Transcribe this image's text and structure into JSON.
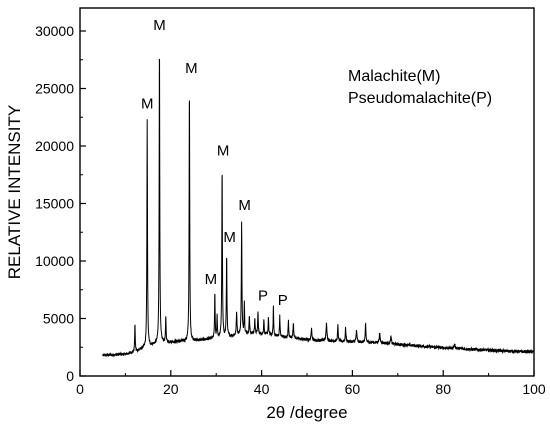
{
  "chart_data": {
    "type": "line",
    "xlabel": "2θ /degree",
    "ylabel": "RELATIVE INTENSITY",
    "xlim": [
      0,
      100
    ],
    "ylim": [
      0,
      32000
    ],
    "x_ticks": [
      0,
      20,
      40,
      60,
      80,
      100
    ],
    "y_ticks": [
      0,
      5000,
      10000,
      15000,
      20000,
      25000,
      30000
    ],
    "legend_lines": [
      "Malachite(M)",
      "Pseudomalachite(P)"
    ],
    "legend_position": "top-right",
    "grid": false,
    "baseline": [
      [
        5,
        1800
      ],
      [
        8,
        1850
      ],
      [
        10,
        1900
      ],
      [
        12,
        2100
      ],
      [
        14,
        2400
      ],
      [
        16,
        2700
      ],
      [
        18,
        2900
      ],
      [
        20,
        2950
      ],
      [
        22,
        3000
      ],
      [
        24,
        3050
      ],
      [
        26,
        3100
      ],
      [
        28,
        3200
      ],
      [
        30,
        3300
      ],
      [
        32,
        3400
      ],
      [
        34,
        3500
      ],
      [
        36,
        3650
      ],
      [
        38,
        3700
      ],
      [
        40,
        3650
      ],
      [
        42,
        3550
      ],
      [
        44,
        3450
      ],
      [
        46,
        3350
      ],
      [
        48,
        3250
      ],
      [
        50,
        3150
      ],
      [
        52,
        3100
      ],
      [
        55,
        3050
      ],
      [
        58,
        3000
      ],
      [
        62,
        2950
      ],
      [
        66,
        2900
      ],
      [
        70,
        2750
      ],
      [
        75,
        2600
      ],
      [
        80,
        2450
      ],
      [
        85,
        2350
      ],
      [
        90,
        2250
      ],
      [
        95,
        2150
      ],
      [
        100,
        2100
      ]
    ],
    "peaks": [
      {
        "x": 12.1,
        "y": 4600,
        "w": 0.12
      },
      {
        "x": 14.8,
        "y": 22200,
        "w": 0.13,
        "label": "M"
      },
      {
        "x": 17.5,
        "y": 29200,
        "w": 0.13,
        "label": "M"
      },
      {
        "x": 18.9,
        "y": 5200,
        "w": 0.12
      },
      {
        "x": 24.1,
        "y": 25300,
        "w": 0.13,
        "label": "M"
      },
      {
        "x": 29.7,
        "y": 7300,
        "w": 0.12,
        "label": "M"
      },
      {
        "x": 30.2,
        "y": 5200,
        "w": 0.12
      },
      {
        "x": 31.3,
        "y": 18300,
        "w": 0.13,
        "label": "M"
      },
      {
        "x": 32.3,
        "y": 10600,
        "w": 0.13,
        "label": "M"
      },
      {
        "x": 34.5,
        "y": 5600,
        "w": 0.15
      },
      {
        "x": 35.6,
        "y": 13400,
        "w": 0.13,
        "label": "M"
      },
      {
        "x": 36.2,
        "y": 6400,
        "w": 0.12
      },
      {
        "x": 37.3,
        "y": 5300,
        "w": 0.12
      },
      {
        "x": 38.5,
        "y": 5100,
        "w": 0.12
      },
      {
        "x": 39.2,
        "y": 5700,
        "w": 0.12,
        "label": "P"
      },
      {
        "x": 40.5,
        "y": 5000,
        "w": 0.12
      },
      {
        "x": 41.5,
        "y": 5200,
        "w": 0.12
      },
      {
        "x": 42.6,
        "y": 6000,
        "w": 0.12
      },
      {
        "x": 44.0,
        "y": 5300,
        "w": 0.12,
        "label": "P"
      },
      {
        "x": 45.9,
        "y": 4900,
        "w": 0.12
      },
      {
        "x": 47.0,
        "y": 4700,
        "w": 0.15
      },
      {
        "x": 51.0,
        "y": 4300,
        "w": 0.15
      },
      {
        "x": 54.3,
        "y": 4600,
        "w": 0.2
      },
      {
        "x": 56.8,
        "y": 4400,
        "w": 0.15
      },
      {
        "x": 58.5,
        "y": 4200,
        "w": 0.15
      },
      {
        "x": 60.9,
        "y": 3900,
        "w": 0.2
      },
      {
        "x": 62.9,
        "y": 4500,
        "w": 0.15
      },
      {
        "x": 66.0,
        "y": 3700,
        "w": 0.2
      },
      {
        "x": 68.5,
        "y": 3400,
        "w": 0.2
      },
      {
        "x": 82.5,
        "y": 2700,
        "w": 0.3
      }
    ]
  }
}
